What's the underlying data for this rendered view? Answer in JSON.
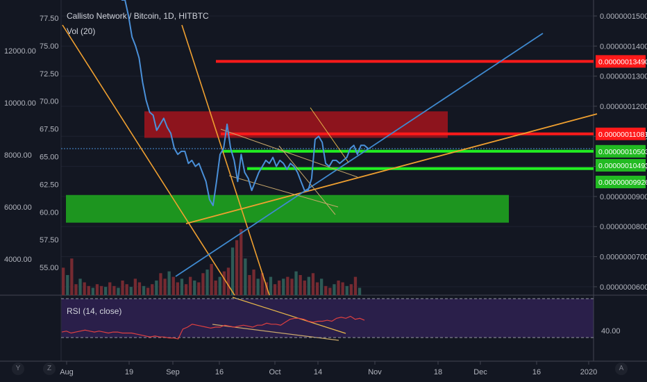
{
  "header": {
    "title": "Callisto Network / Bitcoin, 1D, HITBTC",
    "volume_label": "Vol (20)"
  },
  "rsi": {
    "label": "RSI (14, close)",
    "level_label": "40.00"
  },
  "controls": {
    "left_btn_1": "Y",
    "left_btn_2": "Z",
    "right_btn": "A"
  },
  "colors": {
    "background": "#131722",
    "price_line": "#4a90d9",
    "trend_orange": "#f0a030",
    "resistance_red": "#ff1a1a",
    "support_green": "#22ee22",
    "red_zone": "#a3141c",
    "green_zone": "#1fa31f",
    "rsi_band": "#2a1f4a",
    "rsi_line": "#e04040"
  },
  "chart_data": {
    "type": "line",
    "title": "Callisto Network / Bitcoin, 1D, HITBTC",
    "x_ticks": [
      "Aug",
      "19",
      "Sep",
      "16",
      "Oct",
      "14",
      "Nov",
      "18",
      "Dec",
      "16",
      "2020"
    ],
    "left_axis_outer": {
      "ticks": [
        "12000.00",
        "10000.00",
        "8000.00",
        "6000.00",
        "4000.00"
      ]
    },
    "left_axis_inner": {
      "ticks": [
        "77.50",
        "75.00",
        "72.50",
        "70.00",
        "67.50",
        "65.00",
        "62.50",
        "60.00",
        "57.50",
        "55.00"
      ],
      "ylim": [
        52.5,
        78.5
      ]
    },
    "right_axis": {
      "ticks": [
        "0.00000015000",
        "0.00000014000",
        "0.00000013000",
        "0.00000012000",
        "0.00000011000",
        "0.00000010000",
        "0.00000009000",
        "0.00000008000",
        "0.00000007000",
        "0.00000006000"
      ],
      "ylim": [
        5.72e-08,
        1.53e-07
      ]
    },
    "badges": [
      {
        "text": "0.00000013490",
        "value": 1.349e-07,
        "color": "#ff1a1a"
      },
      {
        "text": "0.00000011081",
        "value": 1.1081e-07,
        "color": "#ff1a1a"
      },
      {
        "text": "0.00000010503",
        "value": 1.0503e-07,
        "color": "#22bb22"
      },
      {
        "text": "0.00000010493",
        "value": 1.0493e-07,
        "color": "#22bb22"
      },
      {
        "text": "0.00000009926",
        "value": 9.926e-08,
        "color": "#22bb22"
      }
    ],
    "price_series": {
      "name": "Price",
      "values": [
        1.7e-07,
        1.6e-07,
        1.5e-07,
        1.43e-07,
        1.4e-07,
        1.36e-07,
        1.28e-07,
        1.22e-07,
        1.18e-07,
        1.17e-07,
        1.12e-07,
        1.14e-07,
        1.16e-07,
        1.13e-07,
        1.11e-07,
        1.06e-07,
        1.04e-07,
        1.05e-07,
        1.05e-07,
        1.01e-07,
        1.02e-07,
        1e-07,
        1.01e-07,
        9.8e-08,
        9.5e-08,
        8.9e-08,
        8.7e-08,
        9.5e-08,
        1.04e-07,
        1.06e-07,
        1.14e-07,
        1.06e-07,
        1.02e-07,
        9.5e-08,
        1.04e-07,
        9.8e-08,
        9.6e-08,
        9.2e-08,
        9.5e-08,
        9.8e-08,
        1e-07,
        1.02e-07,
        1.01e-07,
        1.03e-07,
        1e-07,
        1.02e-07,
        1.01e-07,
        9.9e-08,
        1.01e-07,
        1e-07,
        9.8e-08,
        9.5e-08,
        9.2e-08,
        9.2e-08,
        9.6e-08,
        1.09e-07,
        1.1e-07,
        1.08e-07,
        1.01e-07,
        1e-07,
        1.02e-07,
        1.02e-07,
        1.01e-07,
        1.02e-07,
        1.03e-07,
        1.06e-07,
        1.07e-07,
        1.04e-07,
        1.07e-07,
        1.07e-07,
        1.06e-07
      ]
    },
    "volume_series": {
      "name": "Volume",
      "values": [
        30,
        22,
        40,
        12,
        18,
        14,
        10,
        8,
        12,
        10,
        9,
        14,
        10,
        8,
        16,
        12,
        9,
        18,
        14,
        10,
        8,
        12,
        16,
        24,
        18,
        26,
        20,
        14,
        18,
        12,
        20,
        16,
        14,
        24,
        28,
        34,
        16,
        20,
        26,
        30,
        52,
        60,
        72,
        40,
        22,
        28,
        18,
        24,
        14,
        20,
        12,
        16,
        18,
        20,
        18,
        26,
        22,
        16,
        20,
        24,
        14,
        18,
        10,
        8,
        12,
        16,
        14,
        10,
        12,
        20,
        8
      ]
    },
    "horizontal_levels": [
      {
        "value": 1.349e-07,
        "color": "#ff1a1a"
      },
      {
        "value": 1.1081e-07,
        "color": "#ff1a1a"
      },
      {
        "value": 1.0503e-07,
        "color": "#22ee22"
      },
      {
        "value": 9.926e-08,
        "color": "#22ee22"
      }
    ],
    "zones": [
      {
        "kind": "resistance",
        "top": 1.183e-07,
        "bottom": 1.095e-07,
        "color": "#a3141c"
      },
      {
        "kind": "support",
        "top": 9.05e-08,
        "bottom": 8.13e-08,
        "color": "#1fa31f"
      }
    ],
    "rsi_series": {
      "name": "RSI",
      "values": [
        39,
        40,
        38,
        39,
        40,
        41,
        40,
        39,
        40,
        39,
        38,
        39,
        39,
        38,
        38,
        38,
        37,
        36,
        35,
        34,
        35,
        34,
        34,
        33,
        33,
        32,
        42,
        44,
        47,
        46,
        45,
        44,
        43,
        44,
        44,
        46,
        45,
        44,
        45,
        46,
        45,
        44,
        46,
        46,
        48,
        47,
        47,
        46,
        49,
        52,
        53,
        53,
        52,
        50,
        49,
        50,
        50,
        51,
        50,
        53,
        54,
        53,
        55,
        52,
        53,
        51
      ]
    },
    "rsi_levels": [
      70,
      30
    ],
    "rsi_ylim": [
      20,
      80
    ],
    "legend": "none"
  }
}
